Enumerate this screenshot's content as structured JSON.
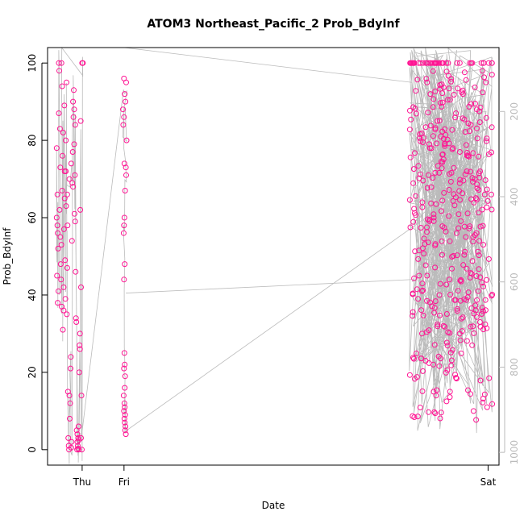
{
  "chart_data": {
    "type": "scatter",
    "title": "ATOM3 Northeast_Pacific_2 Prob_BdyInf",
    "xlabel": "Date",
    "ylabel": "Prob_BdyInf",
    "x_ticks": [
      "Thu",
      "Fri",
      "Sat"
    ],
    "y_ticks": [
      "0",
      "20",
      "40",
      "60",
      "80",
      "100"
    ],
    "y_range": [
      -4,
      104
    ],
    "y2_ticks": [
      "200",
      "400",
      "600",
      "800",
      "1000"
    ],
    "y2_range": [
      1030,
      50
    ],
    "x_range": [
      -0.21,
      1.03
    ],
    "grid": false,
    "colors": {
      "points": "#ff1493",
      "depth_line": "#bbbbbb",
      "axis": "#000000",
      "secondary_axis": "#bbbbbb"
    },
    "series": [
      {
        "kind": "points",
        "points": [
          [
            -0.185,
            60
          ],
          [
            -0.185,
            78
          ],
          [
            -0.184,
            45
          ],
          [
            -0.183,
            66
          ],
          [
            -0.183,
            58
          ],
          [
            -0.182,
            38
          ],
          [
            -0.182,
            56
          ],
          [
            -0.181,
            52
          ],
          [
            -0.18,
            41
          ],
          [
            -0.179,
            87
          ],
          [
            -0.179,
            100
          ],
          [
            -0.178,
            98
          ],
          [
            -0.177,
            62
          ],
          [
            -0.176,
            83
          ],
          [
            -0.175,
            73
          ],
          [
            -0.175,
            55
          ],
          [
            -0.174,
            48
          ],
          [
            -0.173,
            44
          ],
          [
            -0.172,
            53
          ],
          [
            -0.171,
            37
          ],
          [
            -0.17,
            67
          ],
          [
            -0.169,
            76
          ],
          [
            -0.168,
            31
          ],
          [
            -0.167,
            82
          ],
          [
            -0.166,
            42
          ],
          [
            -0.165,
            57
          ],
          [
            -0.164,
            89
          ],
          [
            -0.163,
            65
          ],
          [
            -0.162,
            49
          ],
          [
            -0.161,
            39
          ],
          [
            -0.16,
            72
          ],
          [
            -0.159,
            63
          ],
          [
            -0.158,
            95
          ],
          [
            -0.157,
            35
          ],
          [
            -0.156,
            47
          ],
          [
            -0.155,
            58
          ],
          [
            -0.154,
            15
          ],
          [
            -0.153,
            3
          ],
          [
            -0.152,
            1
          ],
          [
            -0.151,
            0
          ],
          [
            -0.15,
            14
          ],
          [
            -0.149,
            8
          ],
          [
            -0.148,
            12
          ],
          [
            -0.147,
            21
          ],
          [
            -0.146,
            24
          ],
          [
            -0.145,
            0.5
          ],
          [
            -0.144,
            2
          ],
          [
            -0.143,
            54
          ],
          [
            -0.142,
            69
          ],
          [
            -0.141,
            77
          ],
          [
            -0.14,
            90
          ],
          [
            -0.139,
            86
          ],
          [
            -0.138,
            93
          ],
          [
            -0.137,
            79
          ],
          [
            -0.136,
            61
          ],
          [
            -0.135,
            71
          ],
          [
            -0.134,
            84
          ],
          [
            -0.133,
            46
          ],
          [
            -0.132,
            34
          ],
          [
            -0.131,
            33
          ],
          [
            -0.13,
            5
          ],
          [
            -0.129,
            0
          ],
          [
            -0.128,
            2
          ],
          [
            -0.127,
            1
          ],
          [
            -0.126,
            3
          ],
          [
            -0.125,
            6
          ],
          [
            -0.124,
            0
          ],
          [
            -0.123,
            20
          ],
          [
            -0.122,
            27
          ],
          [
            -0.121,
            30
          ],
          [
            -0.12,
            62
          ],
          [
            -0.119,
            85
          ],
          [
            -0.118,
            42
          ],
          [
            -0.117,
            14
          ],
          [
            -0.116,
            0
          ],
          [
            -0.115,
            100
          ],
          [
            -0.114,
            100
          ],
          [
            -0.113,
            100
          ],
          [
            -0.172,
            100
          ],
          [
            -0.17,
            94
          ],
          [
            -0.166,
            36
          ],
          [
            -0.163,
            72
          ],
          [
            -0.16,
            80
          ],
          [
            -0.156,
            66
          ],
          [
            -0.15,
            70
          ],
          [
            -0.145,
            74
          ],
          [
            -0.14,
            68
          ],
          [
            -0.137,
            88
          ],
          [
            -0.134,
            59
          ],
          [
            -0.128,
            4
          ],
          [
            -0.126,
            0.3
          ],
          [
            -0.124,
            2.5
          ],
          [
            -0.121,
            26
          ],
          [
            -0.118,
            3
          ],
          [
            0.0,
            96
          ],
          [
            0.002,
            92
          ],
          [
            0.006,
            95
          ],
          [
            -0.003,
            88
          ],
          [
            0.004,
            90
          ],
          [
            0.007,
            80
          ],
          [
            -0.002,
            84
          ],
          [
            0.0,
            86
          ],
          [
            0.001,
            74
          ],
          [
            0.005,
            73
          ],
          [
            0.006,
            71
          ],
          [
            0.003,
            67
          ],
          [
            0.001,
            60
          ],
          [
            0.0,
            58
          ],
          [
            -0.001,
            56
          ],
          [
            0.002,
            48
          ],
          [
            0.0,
            44
          ],
          [
            0.001,
            25
          ],
          [
            0.002,
            22
          ],
          [
            0.0,
            21
          ],
          [
            0.003,
            19
          ],
          [
            0.002,
            16
          ],
          [
            -0.001,
            14
          ],
          [
            0.001,
            12
          ],
          [
            0.002,
            11
          ],
          [
            0.0,
            10
          ],
          [
            0.003,
            9
          ],
          [
            0.001,
            8
          ],
          [
            0.002,
            7
          ],
          [
            0.004,
            6
          ],
          [
            0.003,
            5
          ],
          [
            0.005,
            4
          ]
        ]
      }
    ],
    "sat_cluster": {
      "x_start": 0.785,
      "x_end": 1.012,
      "y_min": 7,
      "y_max": 100,
      "count": 420
    }
  }
}
